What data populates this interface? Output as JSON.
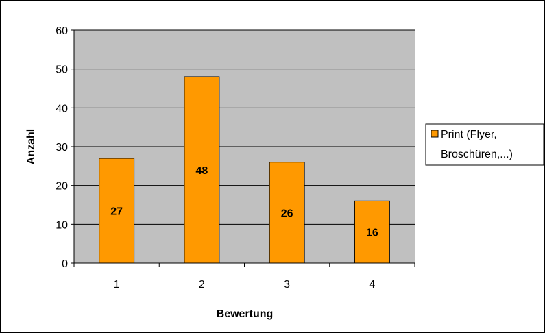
{
  "chart_data": {
    "type": "bar",
    "categories": [
      "1",
      "2",
      "3",
      "4"
    ],
    "series": [
      {
        "name": "Print (Flyer, Broschüren,...)",
        "values": [
          27,
          48,
          26,
          16
        ]
      }
    ],
    "data_labels": [
      "27",
      "48",
      "26",
      "16"
    ],
    "title": "",
    "xlabel": "Bewertung",
    "ylabel": "Anzahl",
    "ylim": [
      0,
      60
    ],
    "yticks": [
      "0",
      "10",
      "20",
      "30",
      "40",
      "50",
      "60"
    ],
    "grid": true,
    "legend_position": "right",
    "legend_lines": [
      "Print (Flyer,",
      "Broschüren,...)"
    ],
    "colors": {
      "bar": "#FF9900",
      "bar_border": "#000000",
      "plot_background": "#C0C0C0",
      "gridline": "#000000"
    }
  }
}
